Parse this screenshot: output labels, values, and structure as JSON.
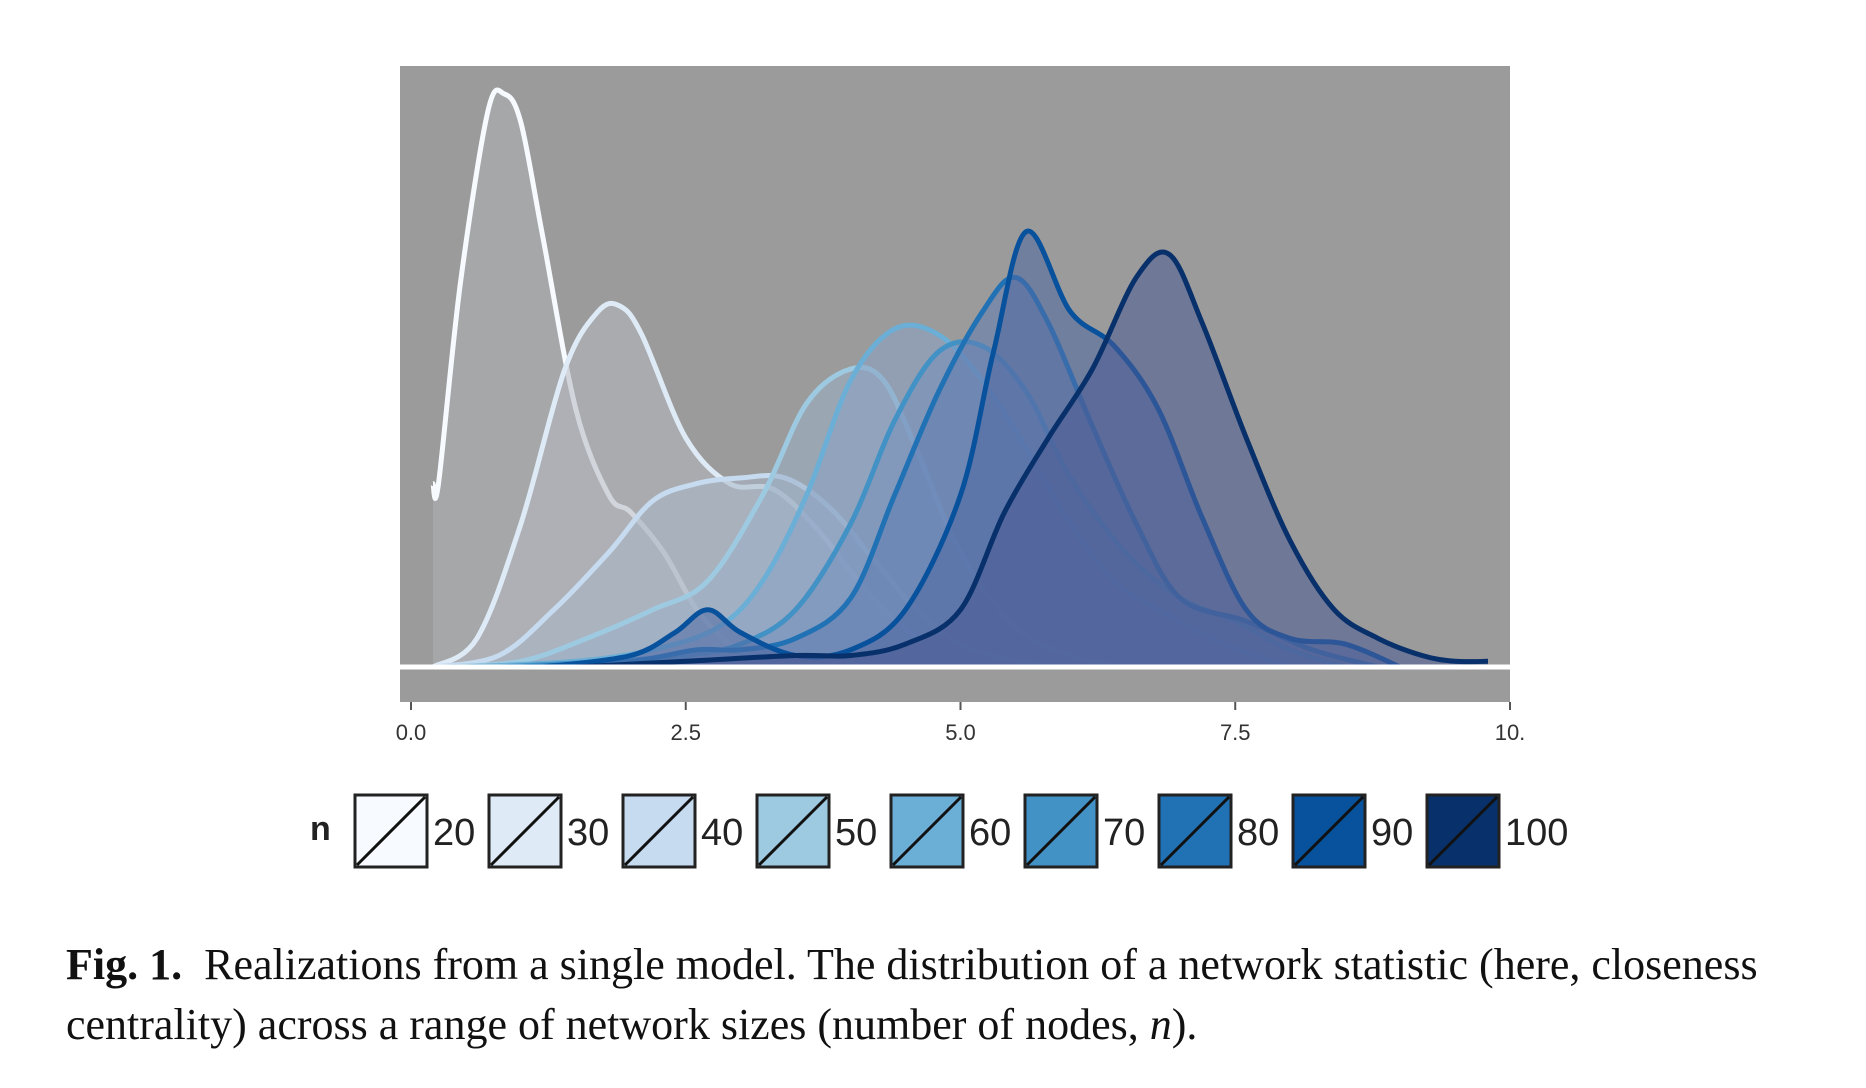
{
  "chart_data": {
    "type": "area",
    "title": "",
    "xlabel": "",
    "ylabel": "",
    "xlim": [
      -0.1,
      10
    ],
    "ylim": [
      0,
      1
    ],
    "x_ticks": [
      0.0,
      2.5,
      5.0,
      7.5,
      10.0
    ],
    "x_tick_labels": [
      "0.0",
      "2.5",
      "5.0",
      "7.5",
      "10."
    ],
    "grid": false,
    "background": "#9b9b9b",
    "legend": {
      "title": "n",
      "placement": "bottom",
      "entries": [
        "20",
        "30",
        "40",
        "50",
        "60",
        "70",
        "80",
        "90",
        "100"
      ],
      "fill_colors": [
        "#f7fbff",
        "#deebf7",
        "#c6dbef",
        "#9ecae1",
        "#6baed6",
        "#4292c6",
        "#2171b5",
        "#08519c",
        "#08306b"
      ]
    },
    "series": [
      {
        "name": "20",
        "stroke": "#f7fbff",
        "fill": "#aeb1b4",
        "x": [
          0.2,
          0.25,
          0.45,
          0.7,
          0.85,
          1.0,
          1.2,
          1.5,
          1.8,
          2.0,
          2.3,
          2.6,
          2.9,
          3.2,
          3.6
        ],
        "y": [
          0.32,
          0.32,
          0.67,
          0.97,
          1.0,
          0.95,
          0.75,
          0.45,
          0.3,
          0.27,
          0.2,
          0.1,
          0.04,
          0.01,
          0.0
        ]
      },
      {
        "name": "30",
        "stroke": "#deebf7",
        "fill": "#b4b8bf",
        "x": [
          0.2,
          0.6,
          1.0,
          1.4,
          1.7,
          1.9,
          2.1,
          2.5,
          2.9,
          3.3,
          3.7,
          4.2,
          4.7,
          5.2,
          5.6
        ],
        "y": [
          0.0,
          0.05,
          0.25,
          0.52,
          0.62,
          0.63,
          0.58,
          0.4,
          0.32,
          0.31,
          0.24,
          0.12,
          0.04,
          0.01,
          0.0
        ]
      },
      {
        "name": "40",
        "stroke": "#c6dbef",
        "fill": "#aab6c6",
        "x": [
          0.2,
          0.8,
          1.3,
          1.8,
          2.2,
          2.6,
          3.0,
          3.4,
          3.8,
          4.2,
          4.6,
          5.0,
          5.5,
          6.0,
          6.5
        ],
        "y": [
          0.0,
          0.02,
          0.1,
          0.2,
          0.29,
          0.32,
          0.33,
          0.33,
          0.28,
          0.19,
          0.1,
          0.04,
          0.01,
          0.0,
          0.0
        ]
      },
      {
        "name": "50",
        "stroke": "#9ecae1",
        "fill": "#9aaec6",
        "x": [
          0.3,
          1.0,
          1.6,
          2.2,
          2.7,
          3.2,
          3.6,
          4.0,
          4.3,
          4.6,
          5.0,
          5.5,
          6.0,
          6.5,
          7.0
        ],
        "y": [
          0.0,
          0.01,
          0.05,
          0.1,
          0.15,
          0.3,
          0.46,
          0.52,
          0.5,
          0.38,
          0.2,
          0.07,
          0.02,
          0.0,
          0.0
        ]
      },
      {
        "name": "60",
        "stroke": "#6baed6",
        "fill": "#8aa3c5",
        "x": [
          0.5,
          1.5,
          2.2,
          2.8,
          3.2,
          3.6,
          4.0,
          4.4,
          4.8,
          5.2,
          5.6,
          6.0,
          6.4,
          6.8,
          7.4,
          8.0
        ],
        "y": [
          0.0,
          0.01,
          0.03,
          0.07,
          0.15,
          0.3,
          0.5,
          0.59,
          0.58,
          0.5,
          0.38,
          0.25,
          0.15,
          0.1,
          0.04,
          0.0
        ]
      },
      {
        "name": "70",
        "stroke": "#4292c6",
        "fill": "#7590bb",
        "x": [
          0.8,
          1.8,
          2.5,
          3.0,
          3.5,
          4.0,
          4.4,
          4.8,
          5.2,
          5.6,
          6.0,
          6.5,
          7.0,
          7.5,
          8.0,
          8.5
        ],
        "y": [
          0.0,
          0.01,
          0.02,
          0.04,
          0.1,
          0.25,
          0.43,
          0.55,
          0.56,
          0.48,
          0.33,
          0.2,
          0.12,
          0.08,
          0.03,
          0.0
        ]
      },
      {
        "name": "80",
        "stroke": "#2171b5",
        "fill": "#607cb0",
        "x": [
          1.0,
          2.0,
          2.6,
          3.0,
          3.5,
          4.0,
          4.4,
          4.8,
          5.2,
          5.5,
          5.8,
          6.2,
          6.6,
          7.0,
          7.6,
          8.2,
          8.8
        ],
        "y": [
          0.0,
          0.01,
          0.03,
          0.03,
          0.05,
          0.12,
          0.3,
          0.48,
          0.62,
          0.68,
          0.6,
          0.42,
          0.25,
          0.12,
          0.08,
          0.03,
          0.0
        ]
      },
      {
        "name": "90",
        "stroke": "#08519c",
        "fill": "#4f68a3",
        "x": [
          1.2,
          2.0,
          2.4,
          2.7,
          3.0,
          3.5,
          4.0,
          4.5,
          5.0,
          5.3,
          5.6,
          6.0,
          6.4,
          6.8,
          7.2,
          7.6,
          8.0,
          8.5,
          9.0
        ],
        "y": [
          0.0,
          0.02,
          0.06,
          0.1,
          0.06,
          0.02,
          0.03,
          0.1,
          0.3,
          0.55,
          0.76,
          0.62,
          0.56,
          0.45,
          0.26,
          0.1,
          0.05,
          0.04,
          0.0
        ]
      },
      {
        "name": "100",
        "stroke": "#08306b",
        "fill": "#4a5b93",
        "x": [
          1.5,
          2.5,
          3.5,
          4.0,
          4.5,
          5.0,
          5.4,
          5.8,
          6.2,
          6.6,
          6.9,
          7.2,
          7.6,
          8.0,
          8.4,
          8.8,
          9.2,
          9.5,
          9.8
        ],
        "y": [
          0.0,
          0.01,
          0.02,
          0.02,
          0.04,
          0.1,
          0.27,
          0.4,
          0.52,
          0.68,
          0.72,
          0.6,
          0.4,
          0.22,
          0.1,
          0.05,
          0.02,
          0.01,
          0.01
        ]
      }
    ]
  },
  "caption": {
    "label": "Fig. 1.",
    "text_main": "Realizations from a single model. The distribution of a network statistic (here, closeness centrality) across a range of network sizes (number of nodes, ",
    "text_italic": "n",
    "text_end": ")."
  }
}
